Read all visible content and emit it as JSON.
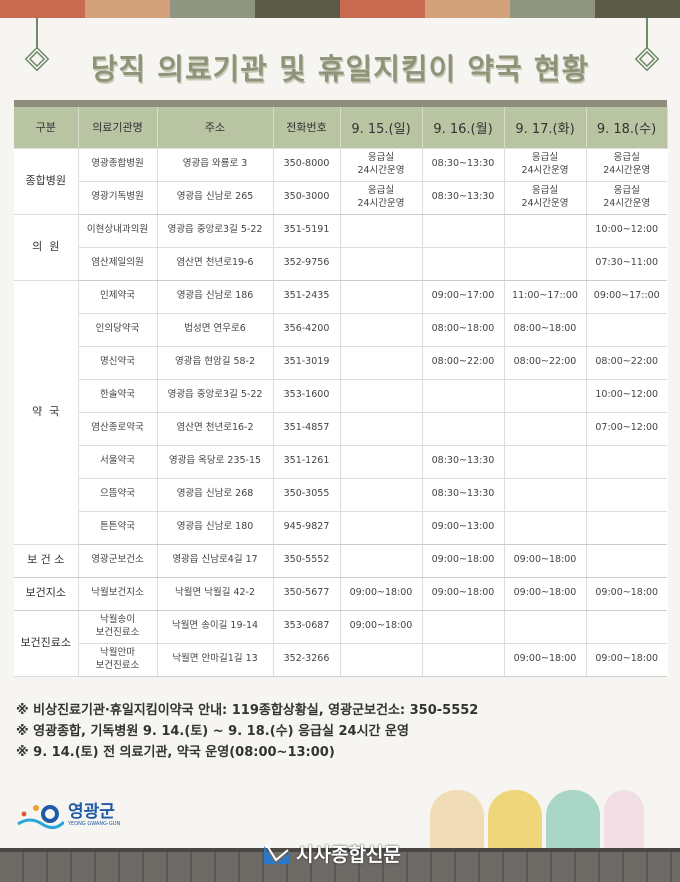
{
  "colors": {
    "accent": "#8f9378",
    "header_bg": "#b9c4a2",
    "topbar": [
      "#c86a4f",
      "#d3a27b",
      "#8f9580",
      "#5c5b47",
      "#c86a4f",
      "#d3a27b",
      "#8f9580",
      "#5c5b47"
    ]
  },
  "title": "당직 의료기관 및 휴일지킴이 약국 현황",
  "table": {
    "headers": [
      "구분",
      "의료기관명",
      "주소",
      "전화번호",
      "9. 15.(일)",
      "9. 16.(월)",
      "9. 17.(화)",
      "9. 18.(수)"
    ],
    "groups": [
      {
        "category": "종합병원",
        "rows": [
          [
            "영광종합병원",
            "영광읍 와룡로 3",
            "350-8000",
            "응급실\n24시간운영",
            "08:30~13:30",
            "응급실\n24시간운영",
            "응급실\n24시간운영"
          ],
          [
            "영광기독병원",
            "영광읍 신남로 265",
            "350-3000",
            "응급실\n24시간운영",
            "08:30~13:30",
            "응급실\n24시간운영",
            "응급실\n24시간운영"
          ]
        ]
      },
      {
        "category": "의  원",
        "rows": [
          [
            "이현상내과의원",
            "영광읍 중앙로3길 5-22",
            "351-5191",
            "",
            "",
            "",
            "10:00~12:00"
          ],
          [
            "염산제일의원",
            "염산면 천년로19-6",
            "352-9756",
            "",
            "",
            "",
            "07:30~11:00"
          ]
        ]
      },
      {
        "category": "약  국",
        "rows": [
          [
            "인제약국",
            "영광읍 신남로 186",
            "351-2435",
            "",
            "09:00~17:00",
            "11:00~17::00",
            "09:00~17::00"
          ],
          [
            "인의당약국",
            "법성면 연우로6",
            "356-4200",
            "",
            "08:00~18:00",
            "08:00~18:00",
            ""
          ],
          [
            "명신약국",
            "영광읍 현암길 58-2",
            "351-3019",
            "",
            "08:00~22:00",
            "08:00~22:00",
            "08:00~22:00"
          ],
          [
            "한솔약국",
            "영광읍 중앙로3길 5-22",
            "353-1600",
            "",
            "",
            "",
            "10:00~12:00"
          ],
          [
            "염산종로약국",
            "염산면 천년로16-2",
            "351-4857",
            "",
            "",
            "",
            "07:00~12:00"
          ],
          [
            "서울약국",
            "영광읍 옥당로 235-15",
            "351-1261",
            "",
            "08:30~13:30",
            "",
            ""
          ],
          [
            "으뜸약국",
            "영광읍 신남로 268",
            "350-3055",
            "",
            "08:30~13:30",
            "",
            ""
          ],
          [
            "튼튼약국",
            "영광읍 신남로 180",
            "945-9827",
            "",
            "09:00~13:00",
            "",
            ""
          ]
        ]
      },
      {
        "category": "보 건 소",
        "rows": [
          [
            "영광군보건소",
            "영광읍 신남로4길 17",
            "350-5552",
            "",
            "09:00~18:00",
            "09:00~18:00",
            ""
          ]
        ]
      },
      {
        "category": "보건지소",
        "rows": [
          [
            "낙월보건지소",
            "낙월면 낙월길 42-2",
            "350-5677",
            "09:00~18:00",
            "09:00~18:00",
            "09:00~18:00",
            "09:00~18:00"
          ]
        ]
      },
      {
        "category": "보건진료소",
        "rows": [
          [
            "낙월송이\n보건진료소",
            "낙월면 송이길 19-14",
            "353-0687",
            "09:00~18:00",
            "",
            "",
            ""
          ],
          [
            "낙월안마\n보건진료소",
            "낙월면 안마길1길 13",
            "352-3266",
            "",
            "",
            "09:00~18:00",
            "09:00~18:00"
          ]
        ]
      }
    ]
  },
  "notes": [
    "※ 비상진료기관·휴일지킴이약국 안내: 119종합상황실, 영광군보건소: 350-5552",
    "※ 영광종합, 기독병원 9. 14.(토) ~ 9. 18.(수) 응급실 24시간 운영",
    "※ 9. 14.(토) 전 의료기관, 약국 운영(08:00~13:00)"
  ],
  "footer": {
    "logo_text": "영광군",
    "logo_sub": "YEONG GWANG-GUN",
    "newspaper": "시사종합신문"
  }
}
